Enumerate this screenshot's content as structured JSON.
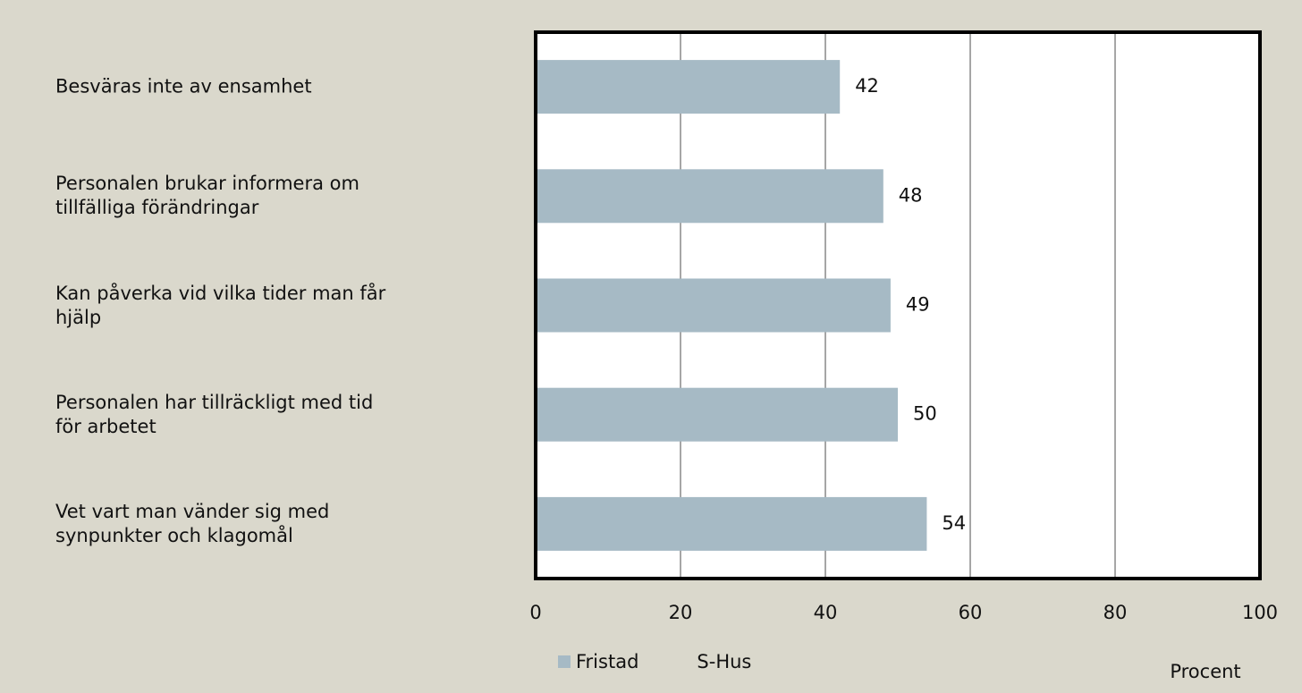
{
  "chart_data": {
    "type": "bar",
    "orientation": "horizontal",
    "categories": [
      "Besväras inte av ensamhet",
      "Personalen brukar informera om\ntillfälliga förändringar",
      "Kan påverka vid vilka tider man får\nhjälp",
      "Personalen har tillräckligt med tid\nför arbetet",
      "Vet vart man vänder sig med\nsynpunkter och klagomål"
    ],
    "series": [
      {
        "name": "Fristad",
        "color": "#a6bac5",
        "values": [
          42,
          48,
          49,
          50,
          54
        ]
      },
      {
        "name": "S-Hus",
        "color": "none",
        "values": [
          null,
          null,
          null,
          null,
          null
        ]
      }
    ],
    "xlabel": "Procent",
    "xlim": [
      0,
      100
    ],
    "xticks": [
      0,
      20,
      40,
      60,
      80,
      100
    ],
    "grid": true
  }
}
